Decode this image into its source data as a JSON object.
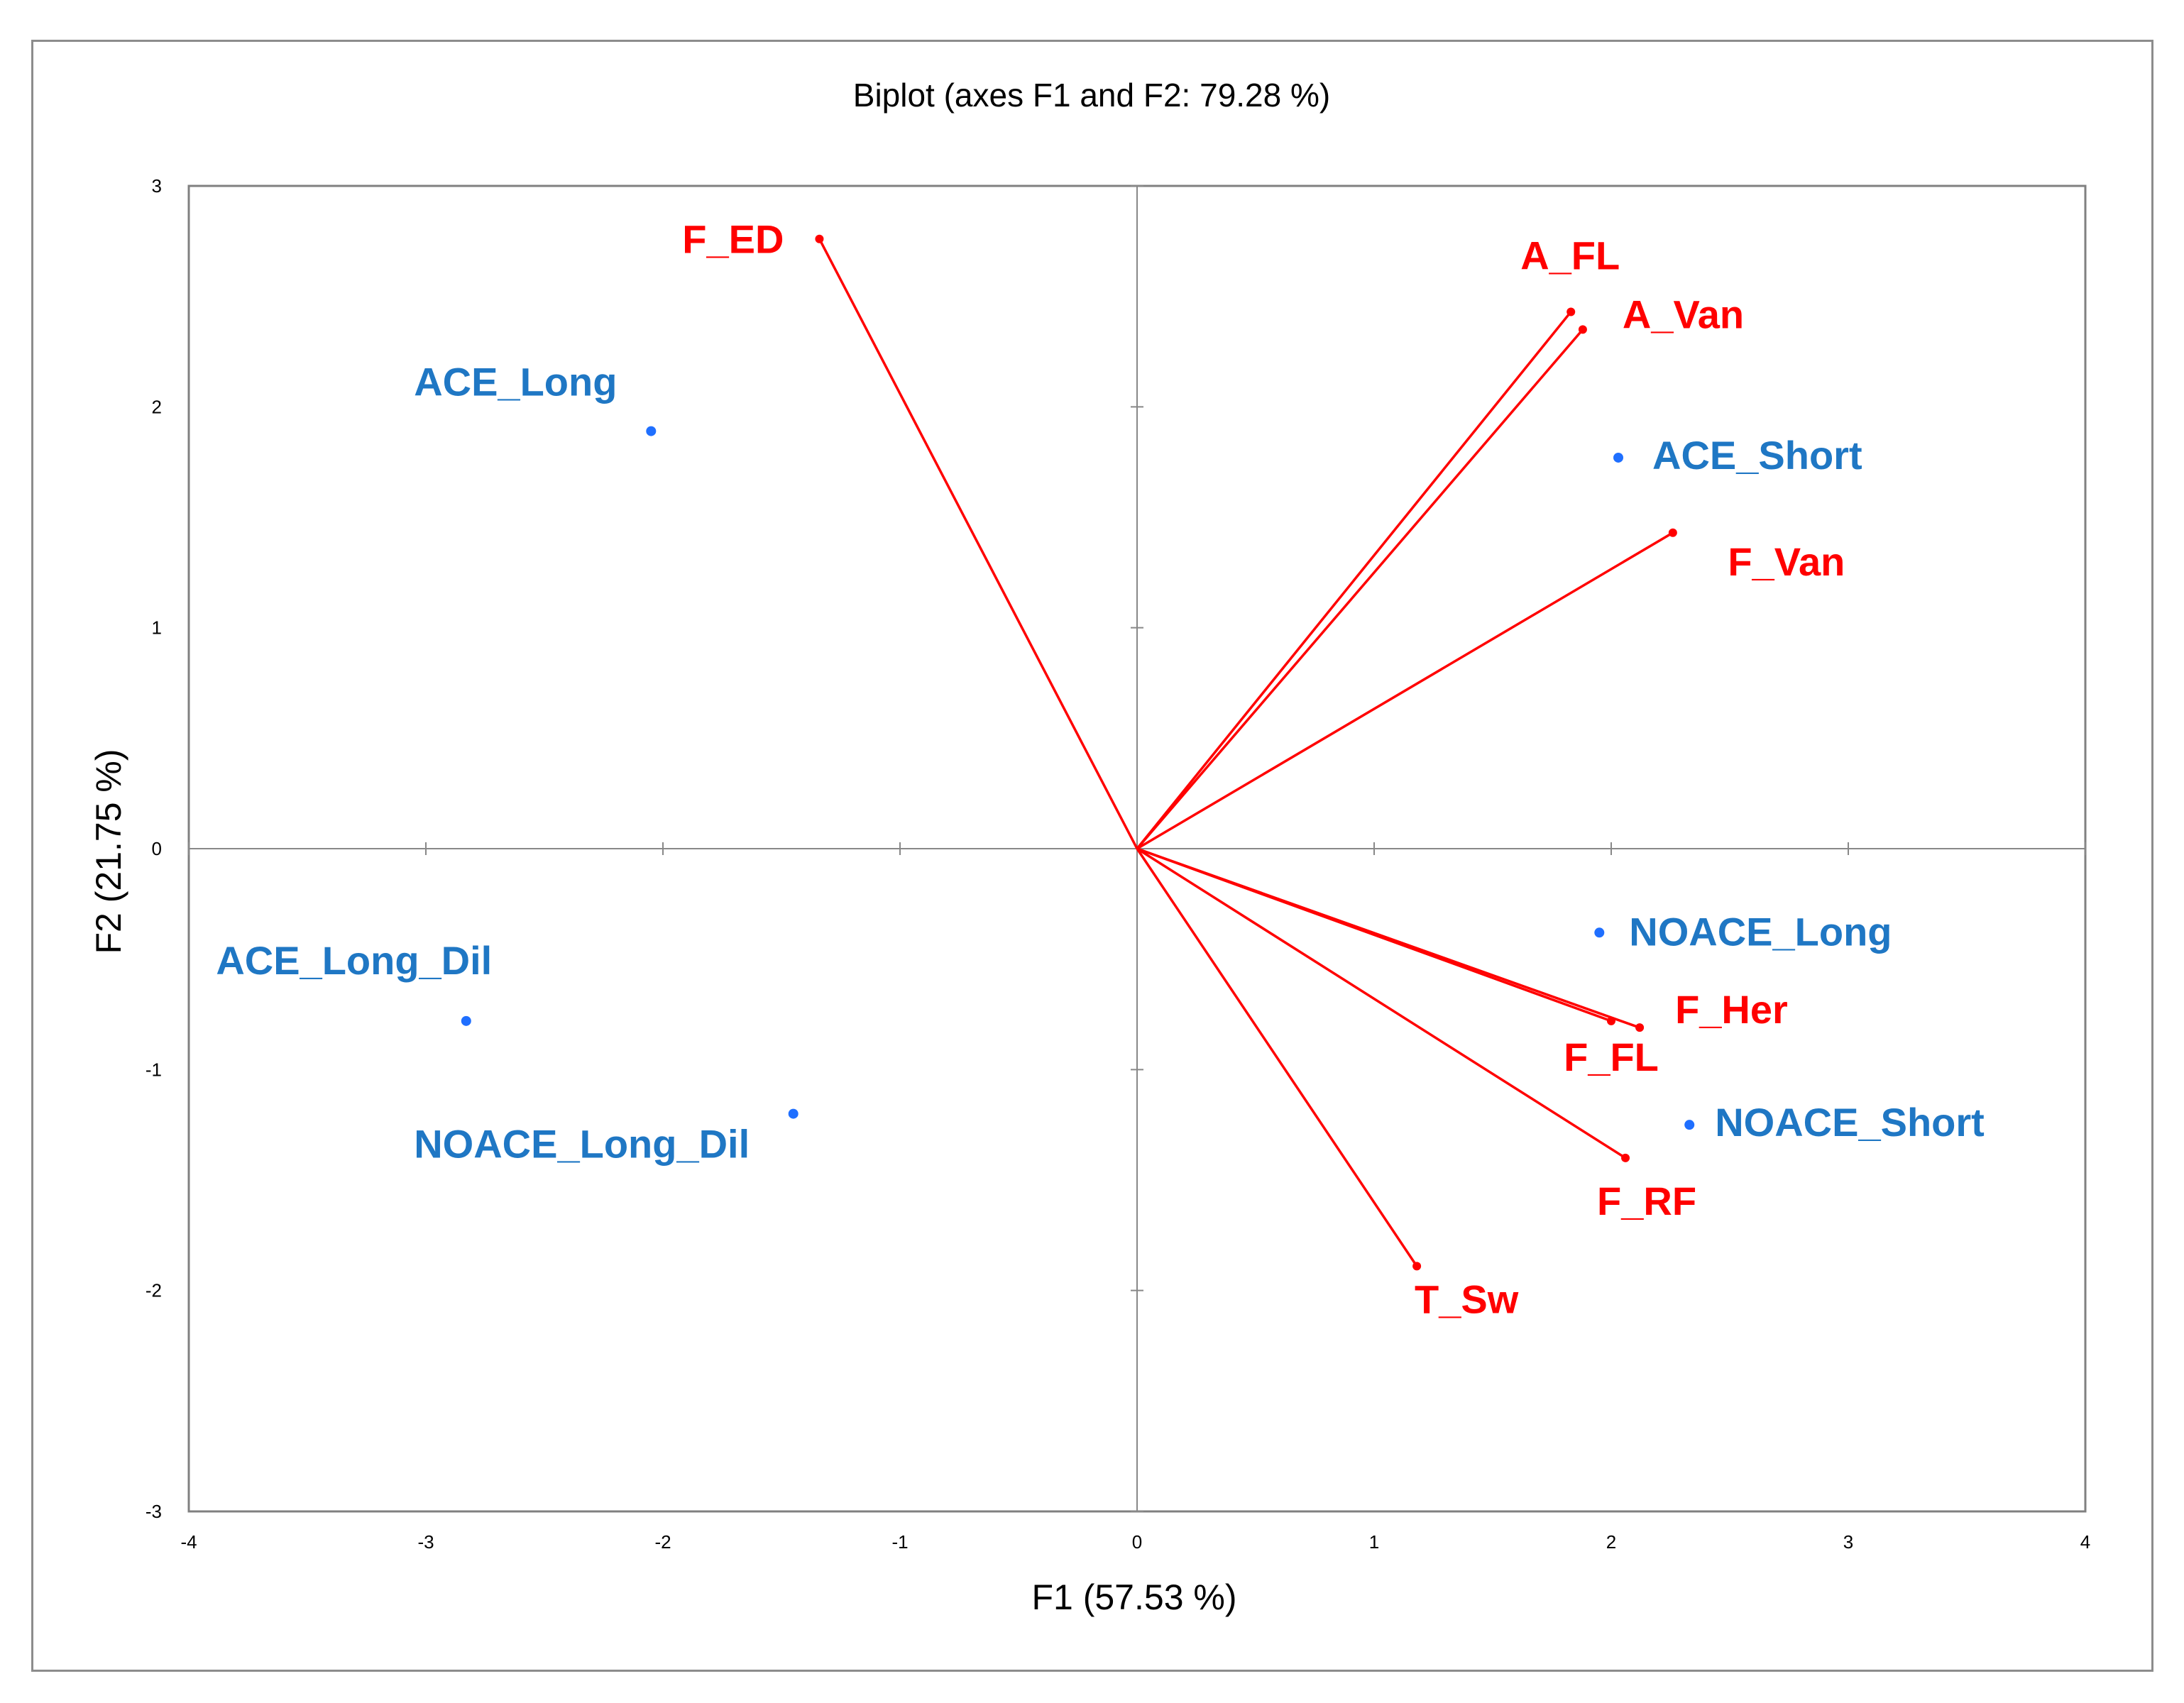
{
  "colors": {
    "variable": "#ff0000",
    "observation_point": "#1f6fff",
    "observation_label": "#1f77c4",
    "axis": "#888888",
    "plot_border": "#808080"
  },
  "chart_data": {
    "type": "scatter",
    "subtype": "biplot",
    "title": "Biplot (axes F1 and F2: 79.28 %)",
    "xlabel": "F1 (57.53 %)",
    "ylabel": "F2 (21.75 %)",
    "xlim": [
      -4,
      4
    ],
    "ylim": [
      -3,
      3
    ],
    "xticks": [
      "-4",
      "-3",
      "-2",
      "-1",
      "0",
      "1",
      "2",
      "3",
      "4"
    ],
    "yticks": [
      "-3",
      "-2",
      "-1",
      "0",
      "1",
      "2",
      "3"
    ],
    "grid": false,
    "legend": "none",
    "variables": [
      {
        "name": "F_ED",
        "x": -1.34,
        "y": 2.76
      },
      {
        "name": "A_FL",
        "x": 1.83,
        "y": 2.43
      },
      {
        "name": "A_Van",
        "x": 1.88,
        "y": 2.35
      },
      {
        "name": "F_Van",
        "x": 2.26,
        "y": 1.43
      },
      {
        "name": "F_FL",
        "x": 2.0,
        "y": -0.78
      },
      {
        "name": "F_Her",
        "x": 2.12,
        "y": -0.81
      },
      {
        "name": "F_RF",
        "x": 2.06,
        "y": -1.4
      },
      {
        "name": "T_Sw",
        "x": 1.18,
        "y": -1.89
      }
    ],
    "observations": [
      {
        "name": "ACE_Long",
        "x": -2.05,
        "y": 1.89
      },
      {
        "name": "ACE_Short",
        "x": 2.03,
        "y": 1.77
      },
      {
        "name": "ACE_Long_Dil",
        "x": -2.83,
        "y": -0.78
      },
      {
        "name": "NOACE_Long_Dil",
        "x": -1.45,
        "y": -1.2
      },
      {
        "name": "NOACE_Long",
        "x": 1.95,
        "y": -0.38
      },
      {
        "name": "NOACE_Short",
        "x": 2.33,
        "y": -1.25
      }
    ]
  }
}
